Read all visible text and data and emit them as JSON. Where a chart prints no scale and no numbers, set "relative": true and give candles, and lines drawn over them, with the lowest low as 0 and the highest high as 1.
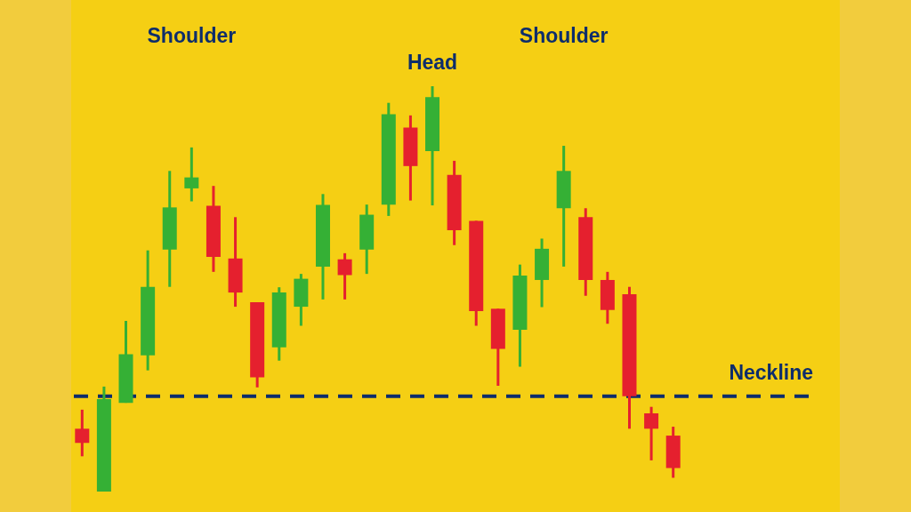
{
  "chart_data": {
    "type": "candlestick",
    "relative": true,
    "categories": [
      null,
      null,
      null,
      null,
      null,
      null,
      null,
      null,
      null,
      null,
      null,
      null,
      null,
      null,
      null,
      null,
      null,
      null,
      null,
      null,
      null,
      null,
      null,
      null,
      null,
      null,
      null,
      null
    ],
    "ohlc": [
      [
        0.155,
        0.202,
        0.087,
        0.12
      ],
      [
        0,
        0.259,
        0,
        0.228
      ],
      [
        0.219,
        0.421,
        0.219,
        0.339
      ],
      [
        0.336,
        0.595,
        0.299,
        0.505
      ],
      [
        0.597,
        0.791,
        0.505,
        0.701
      ],
      [
        0.748,
        0.849,
        0.716,
        0.775
      ],
      [
        0.705,
        0.754,
        0.542,
        0.579
      ],
      [
        0.575,
        0.677,
        0.456,
        0.491
      ],
      [
        0.467,
        0.467,
        0.257,
        0.282
      ],
      [
        0.356,
        0.504,
        0.323,
        0.491
      ],
      [
        0.456,
        0.537,
        0.409,
        0.525
      ],
      [
        0.555,
        0.734,
        0.474,
        0.707
      ],
      [
        0.573,
        0.588,
        0.474,
        0.534
      ],
      [
        0.597,
        0.708,
        0.537,
        0.683
      ],
      [
        0.708,
        0.959,
        0.68,
        0.931
      ],
      [
        0.898,
        0.928,
        0.718,
        0.803
      ],
      [
        0.84,
        1,
        0.706,
        0.973
      ],
      [
        0.781,
        0.816,
        0.608,
        0.645
      ],
      [
        0.668,
        0.668,
        0.409,
        0.445
      ],
      [
        0.451,
        0.451,
        0.261,
        0.352
      ],
      [
        0.399,
        0.56,
        0.308,
        0.533
      ],
      [
        0.522,
        0.624,
        0.455,
        0.599
      ],
      [
        0.699,
        0.853,
        0.555,
        0.791
      ],
      [
        0.677,
        0.699,
        0.483,
        0.522
      ],
      [
        0.522,
        0.542,
        0.414,
        0.448
      ],
      [
        0.487,
        0.505,
        0.155,
        0.235
      ],
      [
        0.193,
        0.209,
        0.077,
        0.155
      ],
      [
        0.138,
        0.16,
        0.034,
        0.058
      ]
    ],
    "colors": [
      "#e5202e",
      "#35b035",
      "#35b035",
      "#35b035",
      "#35b035",
      "#35b035",
      "#e5202e",
      "#e5202e",
      "#e5202e",
      "#35b035",
      "#35b035",
      "#35b035",
      "#e5202e",
      "#35b035",
      "#35b035",
      "#e5202e",
      "#35b035",
      "#e5202e",
      "#e5202e",
      "#e5202e",
      "#35b035",
      "#35b035",
      "#35b035",
      "#e5202e",
      "#e5202e",
      "#e5202e",
      "#e5202e",
      "#e5202e"
    ],
    "annotations": [
      "Shoulder",
      "Head",
      "Shoulder"
    ],
    "ref_lines": [
      {
        "axis": "y",
        "value": 0.235,
        "label": "Neckline",
        "color": "#0d2d6b",
        "line_style": "dashed"
      }
    ]
  }
}
